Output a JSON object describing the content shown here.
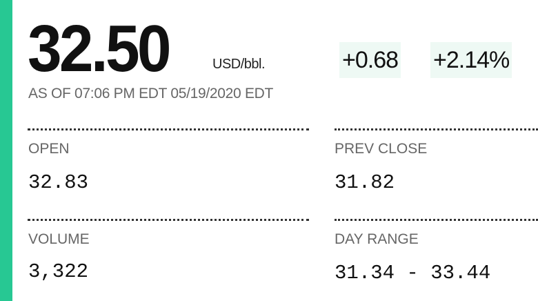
{
  "quote": {
    "price": "32.50",
    "unit": "USD/bbl.",
    "change": "+0.68",
    "change_percent": "+2.14%",
    "as_of": "AS OF 07:06 PM EDT 05/19/2020 EDT",
    "accent_color": "#27c893"
  },
  "stats": {
    "open": {
      "label": "OPEN",
      "value": "32.83"
    },
    "prev_close": {
      "label": "PREV CLOSE",
      "value": "31.82"
    },
    "volume": {
      "label": "VOLUME",
      "value": "3,322"
    },
    "day_range": {
      "label": "DAY RANGE",
      "value": "31.34 - 33.44"
    }
  }
}
